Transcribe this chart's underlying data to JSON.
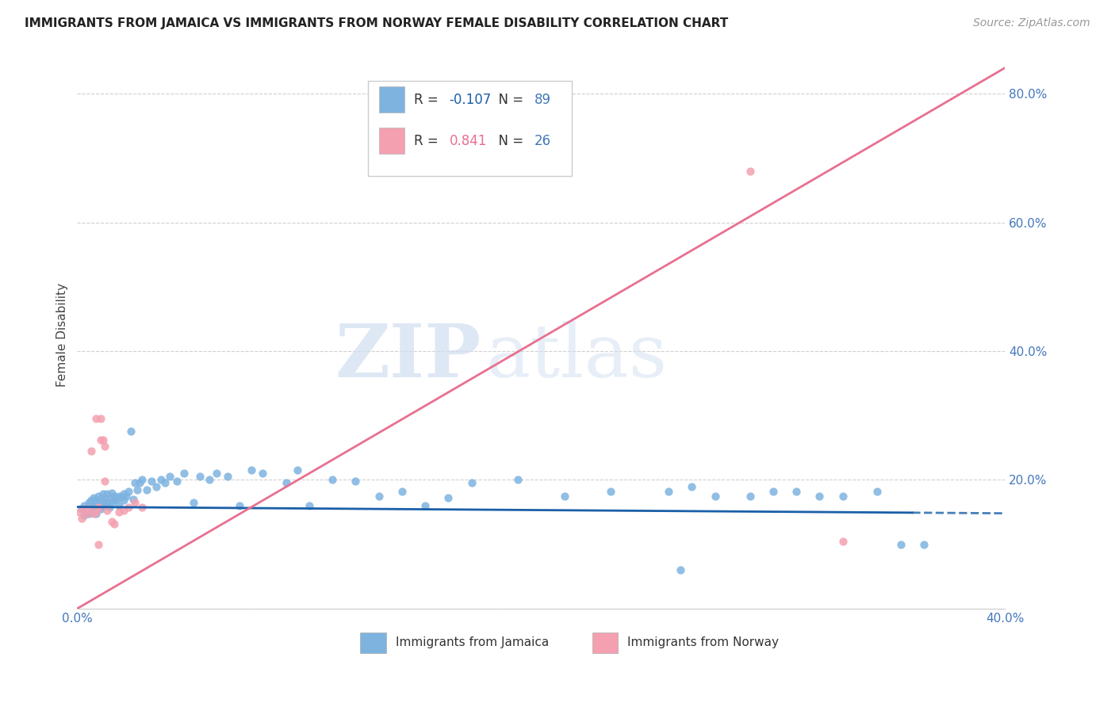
{
  "title": "IMMIGRANTS FROM JAMAICA VS IMMIGRANTS FROM NORWAY FEMALE DISABILITY CORRELATION CHART",
  "source": "Source: ZipAtlas.com",
  "ylabel": "Female Disability",
  "xlim": [
    0.0,
    0.4
  ],
  "ylim": [
    0.0,
    0.85
  ],
  "ytick_vals": [
    0.0,
    0.2,
    0.4,
    0.6,
    0.8
  ],
  "xtick_vals": [
    0.0,
    0.05,
    0.1,
    0.15,
    0.2,
    0.25,
    0.3,
    0.35,
    0.4
  ],
  "jamaica_color": "#7EB3E0",
  "norway_color": "#F4A0B0",
  "jamaica_line_color": "#1A5FA8",
  "norway_line_color": "#E87090",
  "jamaica_R": -0.107,
  "jamaica_N": 89,
  "norway_R": 0.841,
  "norway_N": 26,
  "legend_label_jamaica": "Immigrants from Jamaica",
  "legend_label_norway": "Immigrants from Norway",
  "watermark_zip": "ZIP",
  "watermark_atlas": "atlas",
  "background_color": "#ffffff",
  "grid_color": "#d0d0d0",
  "axis_color": "#4477bb",
  "jamaica_line_solid_end": 0.36,
  "norway_line_intercept": 0.0,
  "norway_line_slope": 2.1,
  "jamaica_line_intercept": 0.158,
  "jamaica_line_slope": -0.025,
  "jamaica_x": [
    0.002,
    0.003,
    0.003,
    0.004,
    0.004,
    0.005,
    0.005,
    0.005,
    0.006,
    0.006,
    0.006,
    0.007,
    0.007,
    0.007,
    0.008,
    0.008,
    0.008,
    0.009,
    0.009,
    0.01,
    0.01,
    0.01,
    0.011,
    0.011,
    0.012,
    0.012,
    0.013,
    0.013,
    0.014,
    0.014,
    0.015,
    0.015,
    0.016,
    0.016,
    0.017,
    0.018,
    0.018,
    0.019,
    0.02,
    0.02,
    0.021,
    0.022,
    0.023,
    0.024,
    0.025,
    0.026,
    0.027,
    0.028,
    0.03,
    0.032,
    0.034,
    0.036,
    0.038,
    0.04,
    0.043,
    0.046,
    0.05,
    0.053,
    0.057,
    0.06,
    0.065,
    0.07,
    0.075,
    0.08,
    0.09,
    0.095,
    0.1,
    0.11,
    0.12,
    0.13,
    0.14,
    0.15,
    0.16,
    0.17,
    0.19,
    0.21,
    0.23,
    0.26,
    0.29,
    0.31,
    0.33,
    0.345,
    0.355,
    0.3,
    0.32,
    0.255,
    0.265,
    0.275,
    0.365
  ],
  "jamaica_y": [
    0.155,
    0.16,
    0.145,
    0.155,
    0.15,
    0.16,
    0.148,
    0.165,
    0.155,
    0.168,
    0.15,
    0.163,
    0.158,
    0.172,
    0.155,
    0.168,
    0.148,
    0.162,
    0.175,
    0.16,
    0.17,
    0.155,
    0.165,
    0.178,
    0.16,
    0.172,
    0.165,
    0.178,
    0.158,
    0.17,
    0.165,
    0.18,
    0.168,
    0.175,
    0.17,
    0.175,
    0.16,
    0.173,
    0.168,
    0.178,
    0.175,
    0.182,
    0.275,
    0.17,
    0.195,
    0.185,
    0.195,
    0.2,
    0.185,
    0.198,
    0.19,
    0.2,
    0.195,
    0.205,
    0.198,
    0.21,
    0.165,
    0.205,
    0.2,
    0.21,
    0.205,
    0.16,
    0.215,
    0.21,
    0.195,
    0.215,
    0.16,
    0.2,
    0.198,
    0.175,
    0.182,
    0.16,
    0.172,
    0.195,
    0.2,
    0.175,
    0.182,
    0.06,
    0.175,
    0.182,
    0.175,
    0.182,
    0.1,
    0.182,
    0.175,
    0.182,
    0.19,
    0.175,
    0.1
  ],
  "norway_x": [
    0.001,
    0.002,
    0.003,
    0.004,
    0.005,
    0.006,
    0.007,
    0.008,
    0.009,
    0.01,
    0.011,
    0.012,
    0.013,
    0.015,
    0.016,
    0.018,
    0.02,
    0.022,
    0.025,
    0.028,
    0.01,
    0.012,
    0.008,
    0.009,
    0.29,
    0.33
  ],
  "norway_y": [
    0.15,
    0.14,
    0.155,
    0.148,
    0.155,
    0.245,
    0.148,
    0.15,
    0.158,
    0.262,
    0.262,
    0.198,
    0.152,
    0.135,
    0.132,
    0.15,
    0.152,
    0.158,
    0.165,
    0.158,
    0.295,
    0.252,
    0.295,
    0.1,
    0.68,
    0.105
  ]
}
